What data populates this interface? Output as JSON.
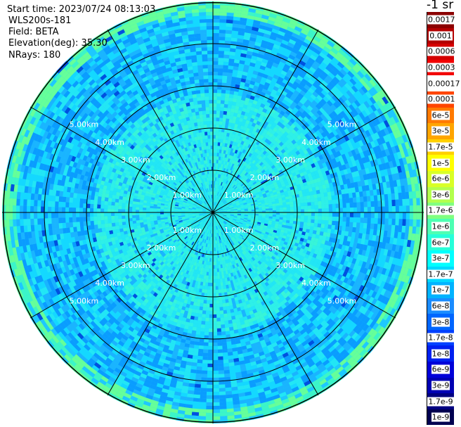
{
  "header": {
    "start_time": "Start time: 2023/07/24 08:13:03",
    "device": "WLS200s-181",
    "field": "Field: BETA",
    "elevation": "Elevation(deg): 35.30",
    "nrays": "NRays: 180"
  },
  "colorbar": {
    "unit": "-1 sr",
    "labels": [
      "0.0017",
      "0.001",
      "0.0006",
      "0.0003",
      "0.00017",
      "0.0001",
      "6e-5",
      "3e-5",
      "1.7e-5",
      "1e-5",
      "6e-6",
      "3e-6",
      "1.7e-6",
      "1e-6",
      "6e-7",
      "3e-7",
      "1.7e-7",
      "1e-7",
      "6e-8",
      "3e-8",
      "1.7e-8",
      "1e-8",
      "6e-9",
      "3e-9",
      "1.7e-9",
      "1e-9"
    ],
    "colors": [
      "#8b0000",
      "#b30000",
      "#d40000",
      "#f20000",
      "#ffffff",
      "#ff4500",
      "#ff7a00",
      "#ffa500",
      "#ffd000",
      "#ffff00",
      "#d9ff26",
      "#b3ff4d",
      "#80ff80",
      "#4dffb3",
      "#26ffd9",
      "#00ffff",
      "#00d9ff",
      "#00b3ff",
      "#1a8cff",
      "#0066ff",
      "#0040ff",
      "#0020f0",
      "#0000d9",
      "#0000b3",
      "#000080",
      "#000050"
    ]
  },
  "chart_data": {
    "type": "heatmap",
    "projection": "polar",
    "range_rings_km": [
      1,
      2,
      3,
      4,
      5
    ],
    "ring_labels": [
      "1.00km",
      "2.00km",
      "3.00km",
      "4.00km",
      "5.00km"
    ],
    "radial_lines_deg": [
      0,
      30,
      60,
      90,
      120,
      150,
      180,
      210,
      240,
      270,
      300,
      330
    ],
    "max_range_km": 5.0,
    "value_scale": "log",
    "value_range": [
      1e-09,
      0.0017
    ]
  }
}
